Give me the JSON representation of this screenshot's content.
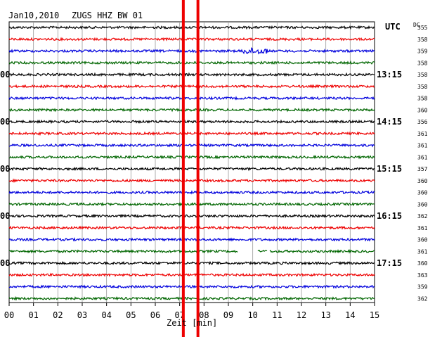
{
  "header": {
    "date": "Jan10,2010",
    "station": "ZUGS HHZ BW 01",
    "utc_label": "UTC",
    "dc_label": "DC"
  },
  "chart_data": {
    "type": "line",
    "title": "Jan10,2010   ZUGS HHZ BW 01",
    "xlabel": "Zeit [min]",
    "ylabel": "",
    "xlim": [
      0,
      15
    ],
    "x_ticks": [
      "00",
      "01",
      "02",
      "03",
      "04",
      "05",
      "06",
      "07",
      "08",
      "09",
      "10",
      "11",
      "12",
      "13",
      "14",
      "15"
    ],
    "grid": true,
    "right_hour_labels": [
      {
        "row": 4,
        "text": "13:15"
      },
      {
        "row": 8,
        "text": "14:15"
      },
      {
        "row": 12,
        "text": "15:15"
      },
      {
        "row": 16,
        "text": "16:15"
      },
      {
        "row": 20,
        "text": "17:15"
      }
    ],
    "left_hour_labels": [
      {
        "row": 4,
        "text": "00"
      },
      {
        "row": 8,
        "text": "00"
      },
      {
        "row": 12,
        "text": "00"
      },
      {
        "row": 16,
        "text": "00"
      },
      {
        "row": 20,
        "text": "00"
      }
    ],
    "trace_colors": [
      "#000000",
      "#ee0000",
      "#0000dd",
      "#006600"
    ],
    "dc_values": [
      355,
      358,
      359,
      358,
      358,
      358,
      358,
      360,
      356,
      361,
      361,
      361,
      357,
      360,
      360,
      360,
      362,
      361,
      360,
      361,
      360,
      363,
      359,
      362
    ],
    "events": [
      {
        "row": 2,
        "from_min": 9.6,
        "to_min": 10.6,
        "note": "small burst"
      }
    ],
    "gaps": [
      {
        "row": 19,
        "from_min": 9.4,
        "to_min": 10.2
      },
      {
        "row": 19,
        "from_min": 10.6,
        "to_min": 10.7
      }
    ],
    "markers": [
      {
        "min": 7.15,
        "color": "#ee0000"
      },
      {
        "min": 7.75,
        "color": "#ee0000"
      }
    ]
  }
}
